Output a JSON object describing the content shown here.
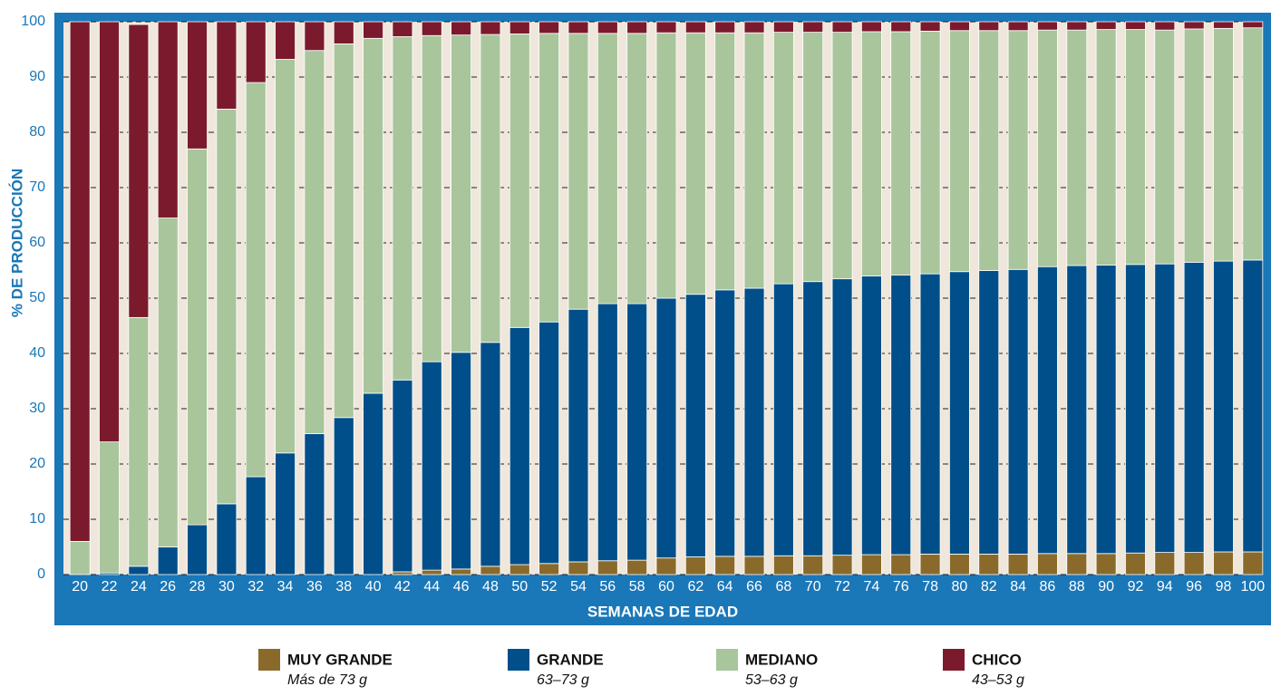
{
  "chart_data": {
    "type": "stacked_bar",
    "xlabel": "SEMANAS DE EDAD",
    "ylabel": "% DE PRODUCCIÓN",
    "categories": [
      "20",
      "22",
      "24",
      "26",
      "28",
      "30",
      "32",
      "34",
      "36",
      "38",
      "40",
      "42",
      "44",
      "46",
      "48",
      "50",
      "52",
      "54",
      "56",
      "58",
      "60",
      "62",
      "64",
      "66",
      "68",
      "70",
      "72",
      "74",
      "76",
      "78",
      "80",
      "82",
      "84",
      "86",
      "88",
      "90",
      "92",
      "94",
      "96",
      "98",
      "100"
    ],
    "series": [
      {
        "name": "MUY GRANDE",
        "description": "Más de 73 g",
        "color": "#8a6a2b",
        "values": [
          0,
          0,
          0,
          0,
          0,
          0,
          0,
          0,
          0,
          0,
          0,
          0.5,
          0.8,
          1,
          1.5,
          1.8,
          2,
          2.3,
          2.5,
          2.6,
          3,
          3.2,
          3.3,
          3.3,
          3.4,
          3.4,
          3.5,
          3.6,
          3.6,
          3.7,
          3.7,
          3.7,
          3.7,
          3.8,
          3.8,
          3.8,
          3.9,
          4,
          4,
          4.1,
          4.1
        ]
      },
      {
        "name": "GRANDE",
        "description": "63–73 g",
        "color": "#004f8a",
        "values": [
          0,
          0.3,
          1.5,
          5,
          9,
          12.8,
          17.7,
          22,
          25.5,
          28.4,
          32.8,
          34.7,
          37.7,
          39.2,
          40.5,
          42.9,
          43.7,
          45.7,
          46.5,
          46.4,
          47,
          47.5,
          48.2,
          48.5,
          49.2,
          49.6,
          50,
          50.4,
          50.6,
          50.7,
          51.1,
          51.3,
          51.5,
          51.9,
          52.1,
          52.2,
          52.2,
          52.2,
          52.5,
          52.6,
          52.8
        ]
      },
      {
        "name": "MEDIANO",
        "description": "53–63 g",
        "color": "#a9c59b",
        "values": [
          6,
          23.7,
          45,
          59.5,
          68,
          71.4,
          71.3,
          71.2,
          69.3,
          67.6,
          64.2,
          62.1,
          59,
          57.4,
          55.7,
          53.1,
          52.2,
          49.9,
          48.9,
          48.9,
          48,
          47.3,
          46.5,
          46.2,
          45.5,
          45.1,
          44.6,
          44.2,
          44,
          43.9,
          43.6,
          43.4,
          43.2,
          42.8,
          42.6,
          42.6,
          42.5,
          42.3,
          42.2,
          42.1,
          42
        ]
      },
      {
        "name": "CHICO",
        "description": "43–53 g",
        "color": "#7b1a2d",
        "values": [
          94,
          76,
          53,
          35.5,
          23,
          15.8,
          11,
          6.8,
          5.2,
          4,
          3,
          2.7,
          2.5,
          2.4,
          2.3,
          2.2,
          2.1,
          2.1,
          2.1,
          2.1,
          2,
          2,
          2,
          2,
          1.9,
          1.9,
          1.9,
          1.8,
          1.8,
          1.7,
          1.6,
          1.6,
          1.6,
          1.5,
          1.5,
          1.4,
          1.4,
          1.5,
          1.3,
          1.2,
          1.1
        ]
      }
    ],
    "ylim": [
      0,
      100
    ],
    "yticks": [
      0,
      10,
      20,
      30,
      40,
      50,
      60,
      70,
      80,
      90,
      100
    ],
    "grid": true
  }
}
